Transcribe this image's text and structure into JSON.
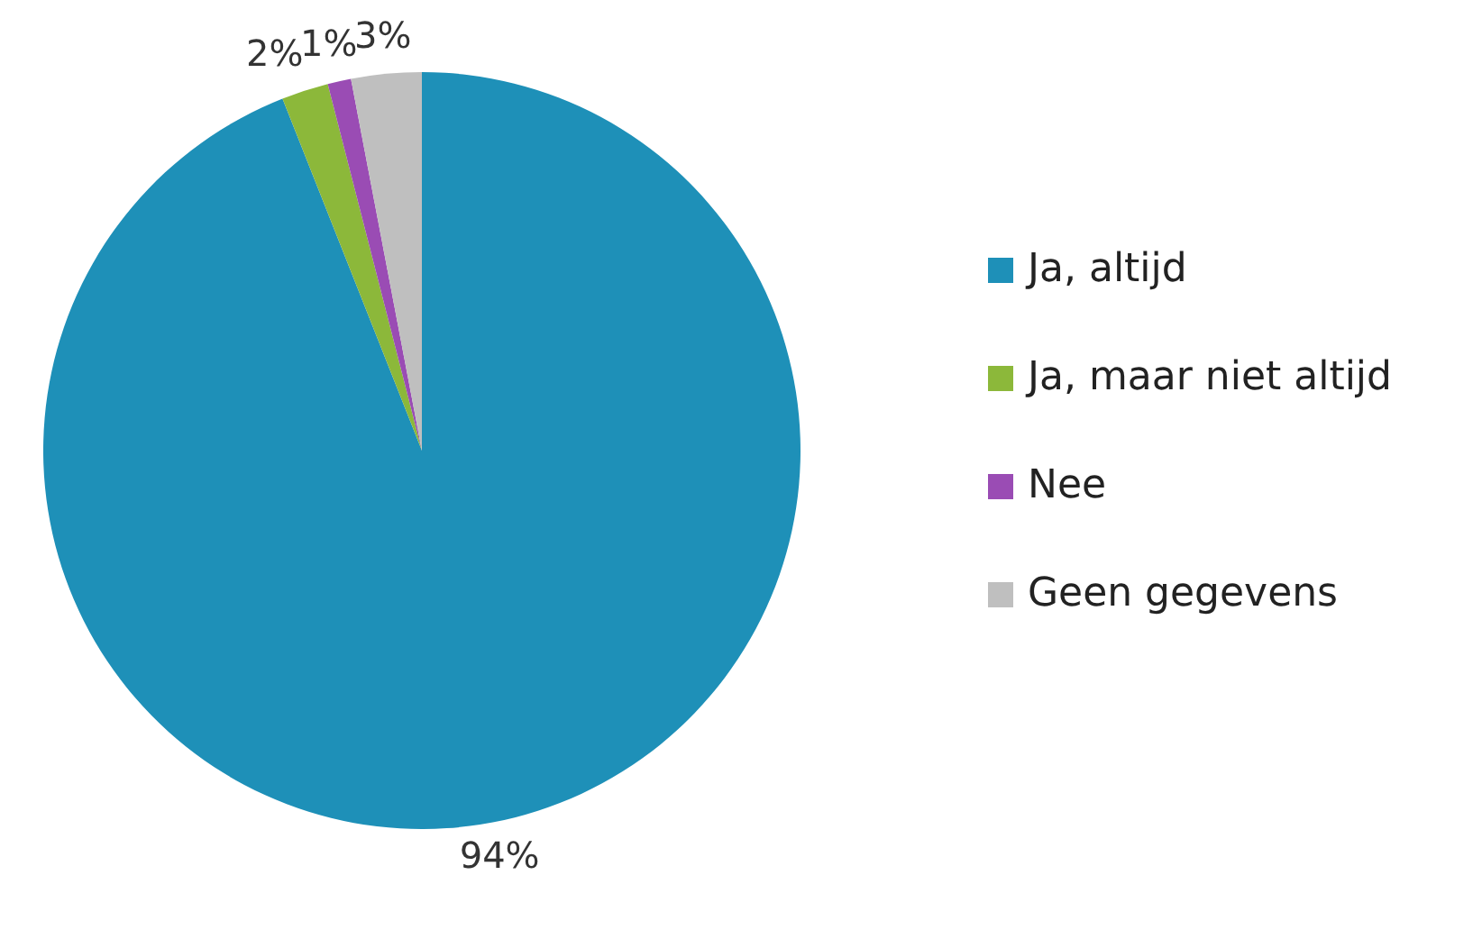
{
  "chart_data": {
    "type": "pie",
    "categories": [
      "Ja, altijd",
      "Ja, maar niet altijd",
      "Nee",
      "Geen gegevens"
    ],
    "values": [
      94,
      2,
      1,
      3
    ],
    "colors": [
      "#1e90b8",
      "#8cb83a",
      "#9a4cb4",
      "#bfbfbf"
    ],
    "value_labels": [
      "94%",
      "2%",
      "1%",
      "3%"
    ],
    "legend": "right"
  }
}
